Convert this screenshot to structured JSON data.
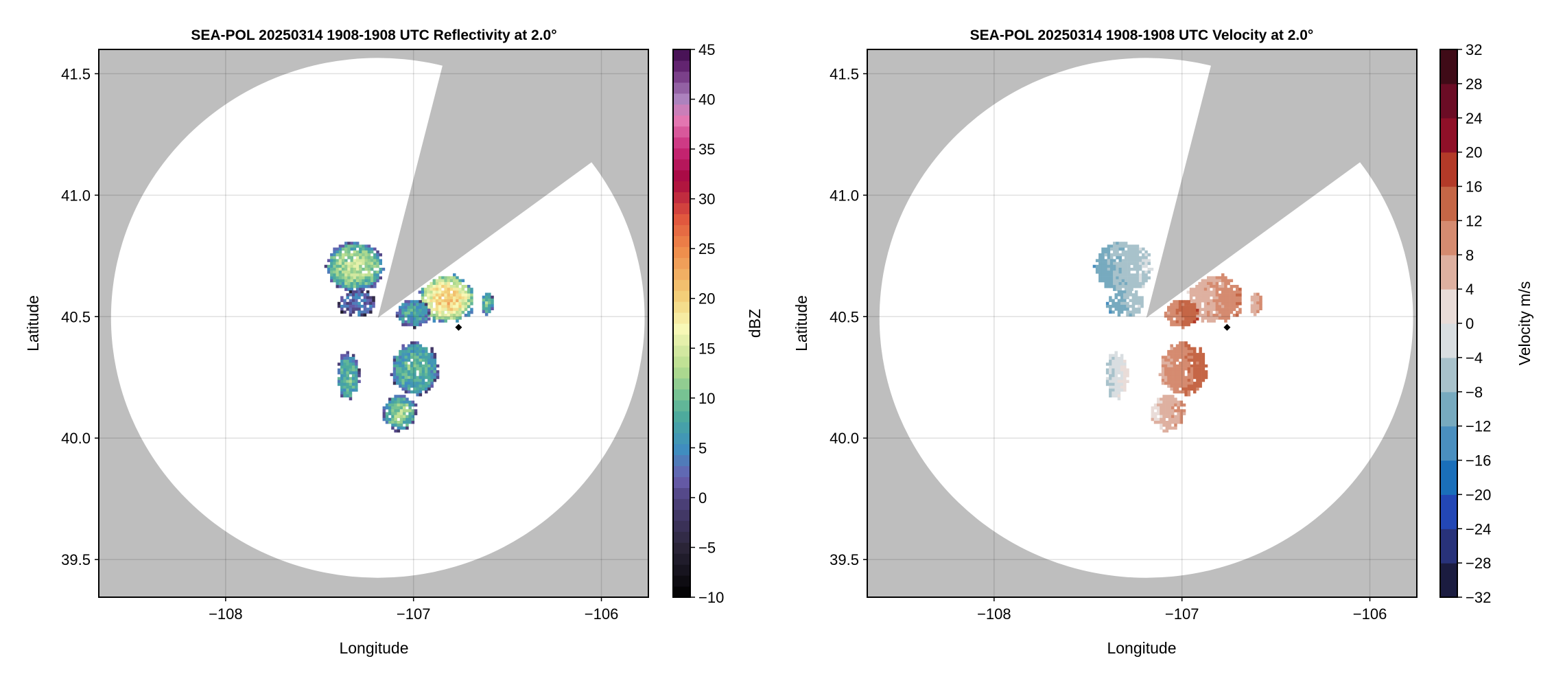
{
  "chart_data": [
    {
      "type": "heatmap",
      "title": "SEA-POL 20250314 1908-1908 UTC Reflectivity at 2.0°",
      "xlabel": "Longitude",
      "ylabel": "Latitude",
      "xlim": [
        -108.675,
        -105.75
      ],
      "ylim": [
        39.345,
        41.6
      ],
      "xticks": [
        -108,
        -107,
        -106
      ],
      "xtick_labels": [
        "−108",
        "−107",
        "−106"
      ],
      "yticks": [
        39.5,
        40.0,
        40.5,
        41.0,
        41.5
      ],
      "ytick_labels": [
        "39.5",
        "40.0",
        "40.5",
        "41.0",
        "41.5"
      ],
      "grid": true,
      "field": "dbz",
      "colorbar": {
        "label": "dBZ",
        "range": [
          -10,
          45
        ],
        "ticks": [
          -10,
          -5,
          0,
          5,
          10,
          15,
          20,
          25,
          30,
          35,
          40,
          45
        ],
        "tick_labels": [
          "−10",
          "−5",
          "0",
          "5",
          "10",
          "15",
          "20",
          "25",
          "30",
          "35",
          "40",
          "45"
        ],
        "bands": 50
      }
    },
    {
      "type": "heatmap",
      "title": "SEA-POL 20250314 1908-1908 UTC Velocity at 2.0°",
      "xlabel": "Longitude",
      "ylabel": "Latitude",
      "xlim": [
        -108.675,
        -105.75
      ],
      "ylim": [
        39.345,
        41.6
      ],
      "xticks": [
        -108,
        -107,
        -106
      ],
      "xtick_labels": [
        "−108",
        "−107",
        "−106"
      ],
      "yticks": [
        39.5,
        40.0,
        40.5,
        41.0,
        41.5
      ],
      "ytick_labels": [
        "39.5",
        "40.0",
        "40.5",
        "41.0",
        "41.5"
      ],
      "grid": true,
      "field": "vel",
      "colorbar": {
        "label": "Velocity m/s",
        "range": [
          -32,
          32
        ],
        "ticks": [
          -32,
          -28,
          -24,
          -20,
          -16,
          -12,
          -8,
          -4,
          0,
          4,
          8,
          12,
          16,
          20,
          24,
          28,
          32
        ],
        "tick_labels": [
          "−32",
          "−28",
          "−24",
          "−20",
          "−16",
          "−12",
          "−8",
          "−4",
          "0",
          "4",
          "8",
          "12",
          "16",
          "20",
          "24",
          "28",
          "32"
        ],
        "bands": 16
      }
    }
  ],
  "radar": {
    "center": {
      "lon": -107.19,
      "lat": 40.495
    },
    "range_lon": 1.42,
    "range_lat": 1.07,
    "blocked_sector_edges": [
      {
        "lon": -106.85,
        "lat": 41.52
      },
      {
        "lon": -106.08,
        "lat": 41.12
      }
    ],
    "marker": {
      "lon": -106.76,
      "lat": 40.456,
      "shape": "diamond"
    }
  },
  "echo_regions": [
    {
      "lon": -107.32,
      "lat": 40.71,
      "rlon": 0.17,
      "rlat": 0.11,
      "dbz": 14,
      "vel": -7
    },
    {
      "lon": -107.31,
      "lat": 40.56,
      "rlon": 0.11,
      "rlat": 0.06,
      "dbz": 3,
      "vel": -8
    },
    {
      "lon": -106.83,
      "lat": 40.58,
      "rlon": 0.16,
      "rlat": 0.11,
      "dbz": 21,
      "vel": 8
    },
    {
      "lon": -107.01,
      "lat": 40.52,
      "rlon": 0.1,
      "rlat": 0.06,
      "dbz": 8,
      "vel": 12
    },
    {
      "lon": -107.0,
      "lat": 40.29,
      "rlon": 0.14,
      "rlat": 0.12,
      "dbz": 10,
      "vel": 11
    },
    {
      "lon": -107.355,
      "lat": 40.26,
      "rlon": 0.065,
      "rlat": 0.11,
      "dbz": 10,
      "vel": -2
    },
    {
      "lon": -107.08,
      "lat": 40.11,
      "rlon": 0.1,
      "rlat": 0.08,
      "dbz": 12,
      "vel": 6
    },
    {
      "lon": -106.615,
      "lat": 40.56,
      "rlon": 0.035,
      "rlat": 0.05,
      "dbz": 11,
      "vel": 7
    }
  ],
  "colors": {
    "background_blocked": "#bebebe",
    "coverage": "#ffffff",
    "grid": "#d9d9d9",
    "dbz_scale": [
      [
        -10,
        "#000000"
      ],
      [
        -5,
        "#2a2438"
      ],
      [
        0,
        "#4f437f"
      ],
      [
        2,
        "#6a5fb0"
      ],
      [
        5,
        "#3e8fc0"
      ],
      [
        8,
        "#4aa89e"
      ],
      [
        10,
        "#6fbf94"
      ],
      [
        13,
        "#b5dc8e"
      ],
      [
        17,
        "#f8f8b6"
      ],
      [
        20,
        "#f3d27c"
      ],
      [
        25,
        "#ef8a4a"
      ],
      [
        28,
        "#e1573e"
      ],
      [
        32,
        "#a6073f"
      ],
      [
        35,
        "#c82878"
      ],
      [
        38,
        "#e47ab4"
      ],
      [
        40,
        "#ad83bf"
      ],
      [
        43,
        "#6a2a78"
      ],
      [
        45,
        "#3c0a4b"
      ]
    ],
    "vel_bands": [
      "#1b1c40",
      "#28327a",
      "#2347b5",
      "#1a6fba",
      "#4a8fbf",
      "#77aabf",
      "#a8c2cb",
      "#d9dee1",
      "#e9dcd8",
      "#deb0a0",
      "#d58b70",
      "#c56646",
      "#b33a28",
      "#8f1028",
      "#6b0c25",
      "#3f0b17"
    ]
  }
}
